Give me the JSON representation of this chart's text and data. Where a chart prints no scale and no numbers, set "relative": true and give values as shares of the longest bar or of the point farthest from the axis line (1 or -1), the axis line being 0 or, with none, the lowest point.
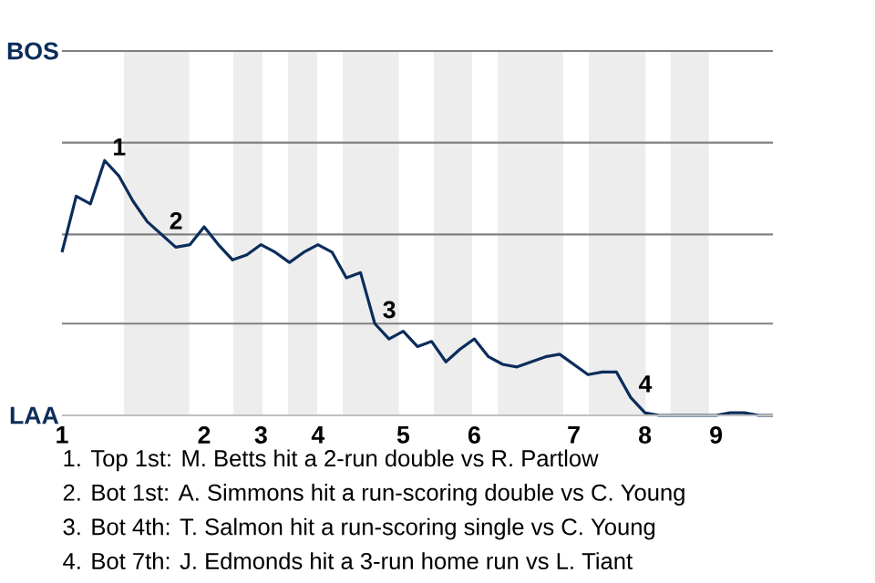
{
  "chart_data": {
    "type": "line",
    "relative": true,
    "ref_lines": [
      {
        "axis": "y",
        "value": 0.36,
        "color": "#808080"
      },
      {
        "axis": "y",
        "value": 0.71,
        "color": "#808080"
      },
      {
        "axis": "y",
        "value": 1.07,
        "color": "#808080"
      },
      {
        "axis": "y",
        "value": 1.43,
        "color": "#808080"
      }
    ],
    "categories": [
      "1",
      null,
      null,
      null,
      null,
      null,
      null,
      null,
      null,
      null,
      "2",
      null,
      null,
      null,
      "3",
      null,
      null,
      null,
      "4",
      null,
      null,
      null,
      null,
      null,
      "5",
      null,
      null,
      null,
      null,
      "6",
      null,
      null,
      null,
      null,
      null,
      null,
      "7",
      null,
      null,
      null,
      null,
      "8",
      null,
      null,
      null,
      null,
      "9",
      null,
      null,
      null,
      null
    ],
    "series": [
      {
        "color": "#0b2d5b",
        "values": [
          0.64,
          0.86,
          0.83,
          1.0,
          0.94,
          0.84,
          0.76,
          0.71,
          0.66,
          0.67,
          0.74,
          0.67,
          0.61,
          0.63,
          0.67,
          0.64,
          0.6,
          0.64,
          0.67,
          0.64,
          0.54,
          0.56,
          0.36,
          0.3,
          0.33,
          0.27,
          0.29,
          0.21,
          0.26,
          0.3,
          0.23,
          0.2,
          0.19,
          0.21,
          0.23,
          0.24,
          0.2,
          0.16,
          0.17,
          0.17,
          0.07,
          0.01,
          0,
          0,
          0,
          0,
          0,
          0.01,
          0.01,
          0,
          0
        ]
      }
    ],
    "annotations": [
      "1",
      "2",
      "3",
      "4",
      "BOS",
      "LAA",
      "1. Top 1st: M. Betts hit a 2-run double vs R. Partlow",
      "2. Bot 1st: A. Simmons hit a run-scoring double vs C. Young",
      "3. Bot 4th: T. Salmon hit a run-scoring single vs C. Young",
      "4. Bot 7th: J. Edmonds hit a 3-run home run vs L. Tiant"
    ]
  }
}
